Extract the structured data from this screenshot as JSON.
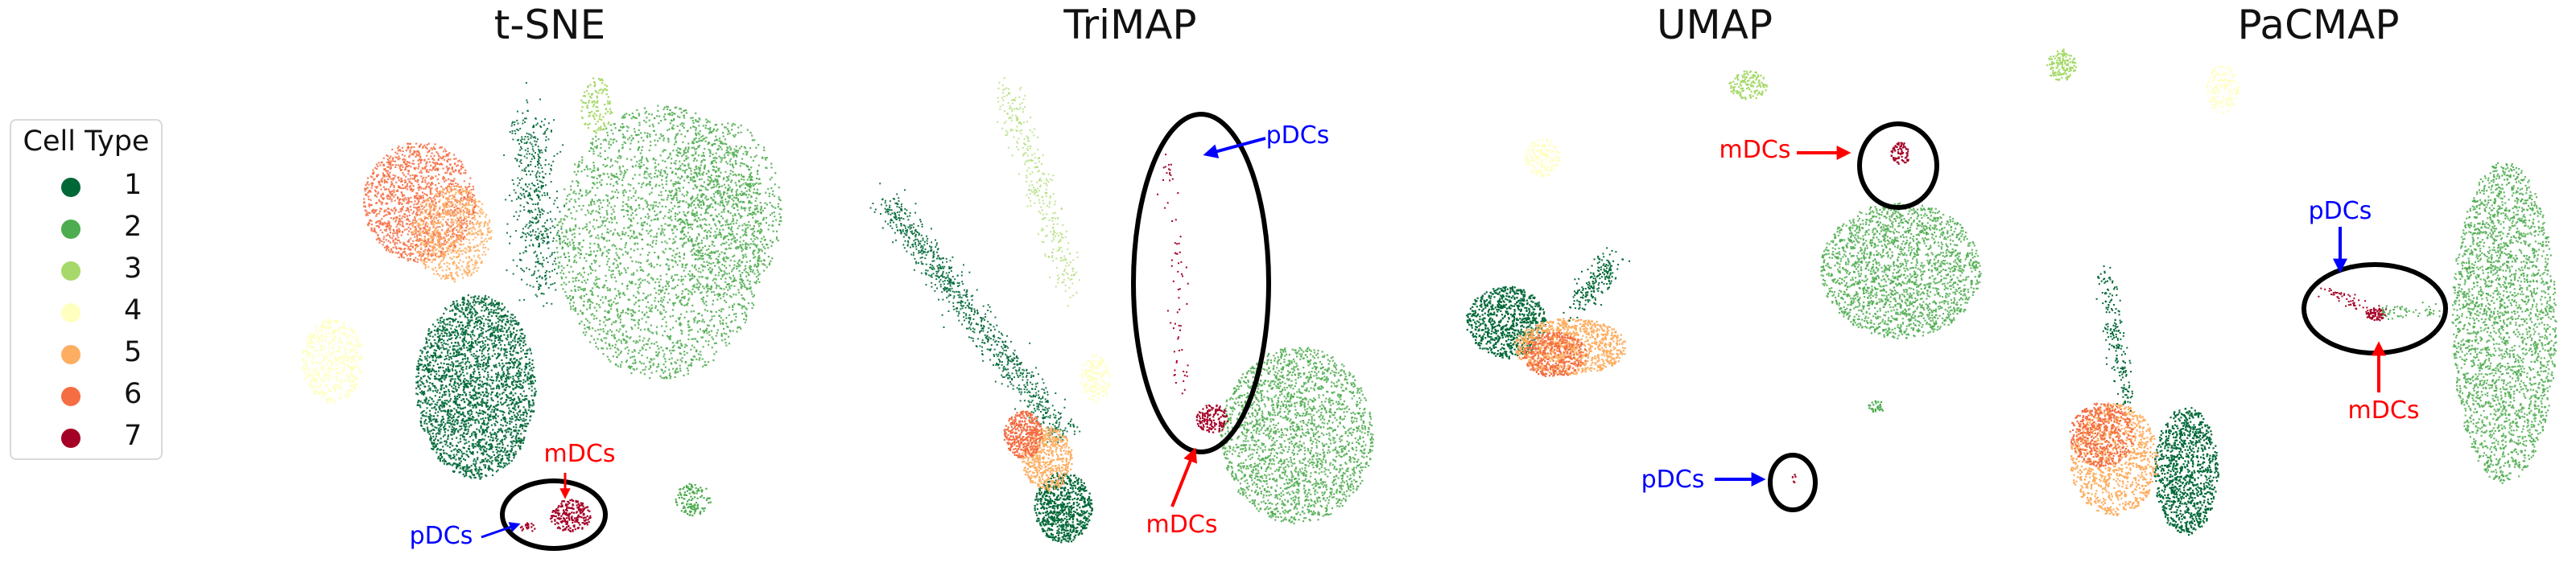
{
  "legend": {
    "title": "Cell Type",
    "items": [
      {
        "label": "1",
        "color": "#006837"
      },
      {
        "label": "2",
        "color": "#4dac4f"
      },
      {
        "label": "3",
        "color": "#a6d96a"
      },
      {
        "label": "4",
        "color": "#ffffbf"
      },
      {
        "label": "5",
        "color": "#fdae61"
      },
      {
        "label": "6",
        "color": "#f46d43"
      },
      {
        "label": "7",
        "color": "#a50026"
      }
    ]
  },
  "annotation_colors": {
    "pDCs": "#0000ff",
    "mDCs": "#ff0000",
    "ellipse": "#000000"
  },
  "chart_data": [
    {
      "type": "scatter",
      "title": "t-SNE",
      "axes_visible": false,
      "grid": false,
      "series_by_cell_type": [
        "1",
        "2",
        "3",
        "4",
        "5",
        "6",
        "7"
      ],
      "annotations": [
        {
          "text": "mDCs",
          "color": "#ff0000"
        },
        {
          "text": "pDCs",
          "color": "#0000ff"
        }
      ]
    },
    {
      "type": "scatter",
      "title": "TriMAP",
      "axes_visible": false,
      "grid": false,
      "series_by_cell_type": [
        "1",
        "2",
        "3",
        "4",
        "5",
        "6",
        "7"
      ],
      "annotations": [
        {
          "text": "pDCs",
          "color": "#0000ff"
        },
        {
          "text": "mDCs",
          "color": "#ff0000"
        }
      ]
    },
    {
      "type": "scatter",
      "title": "UMAP",
      "axes_visible": false,
      "grid": false,
      "series_by_cell_type": [
        "1",
        "2",
        "3",
        "4",
        "5",
        "6",
        "7"
      ],
      "annotations": [
        {
          "text": "mDCs",
          "color": "#ff0000"
        },
        {
          "text": "pDCs",
          "color": "#0000ff"
        }
      ]
    },
    {
      "type": "scatter",
      "title": "PaCMAP",
      "axes_visible": false,
      "grid": false,
      "series_by_cell_type": [
        "1",
        "2",
        "3",
        "4",
        "5",
        "6",
        "7"
      ],
      "annotations": [
        {
          "text": "pDCs",
          "color": "#0000ff"
        },
        {
          "text": "mDCs",
          "color": "#ff0000"
        }
      ]
    }
  ]
}
